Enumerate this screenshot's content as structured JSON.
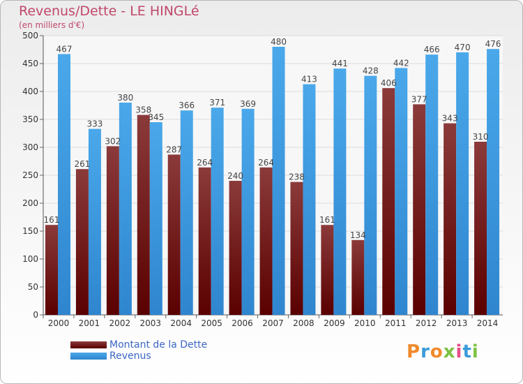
{
  "brand": {
    "text": "Proxiti",
    "colors": [
      "#f08a2c",
      "#3a9ad9",
      "#f08a2c",
      "#7cc242",
      "#e84d8a",
      "#3a9ad9",
      "#7cc242"
    ]
  },
  "colors": {
    "dette": "#7a1c1c",
    "revenus": "#3d9be0"
  },
  "chart_data": {
    "type": "bar",
    "title": "Revenus/Dette - LE HINGLé",
    "subtitle": "(en milliers d'€)",
    "xlabel": "",
    "ylabel": "",
    "ylim": [
      0,
      500
    ],
    "yticks": [
      0,
      50,
      100,
      150,
      200,
      250,
      300,
      350,
      400,
      450,
      500
    ],
    "grid": true,
    "legend_position": "bottom-left",
    "categories": [
      "2000",
      "2001",
      "2002",
      "2003",
      "2004",
      "2005",
      "2006",
      "2007",
      "2008",
      "2009",
      "2010",
      "2011",
      "2012",
      "2013",
      "2014"
    ],
    "series": [
      {
        "name": "Montant de la Dette",
        "values": [
          161,
          261,
          302,
          358,
          287,
          264,
          240,
          264,
          238,
          161,
          134,
          406,
          377,
          343,
          310
        ],
        "labels": [
          "161",
          "261",
          "302",
          "358",
          "287",
          "264",
          "240",
          "264",
          "238",
          "161",
          "134",
          "406",
          "377",
          "343",
          "310"
        ]
      },
      {
        "name": "Revenus",
        "values": [
          467,
          333,
          380,
          345,
          366,
          371,
          369,
          480,
          413,
          441,
          428,
          442,
          466,
          470,
          476
        ],
        "labels": [
          "467",
          "333",
          "380",
          "345",
          "366",
          "371",
          "369",
          "480",
          "413",
          "441",
          "428",
          "442",
          "466",
          "470",
          "476"
        ]
      }
    ]
  }
}
